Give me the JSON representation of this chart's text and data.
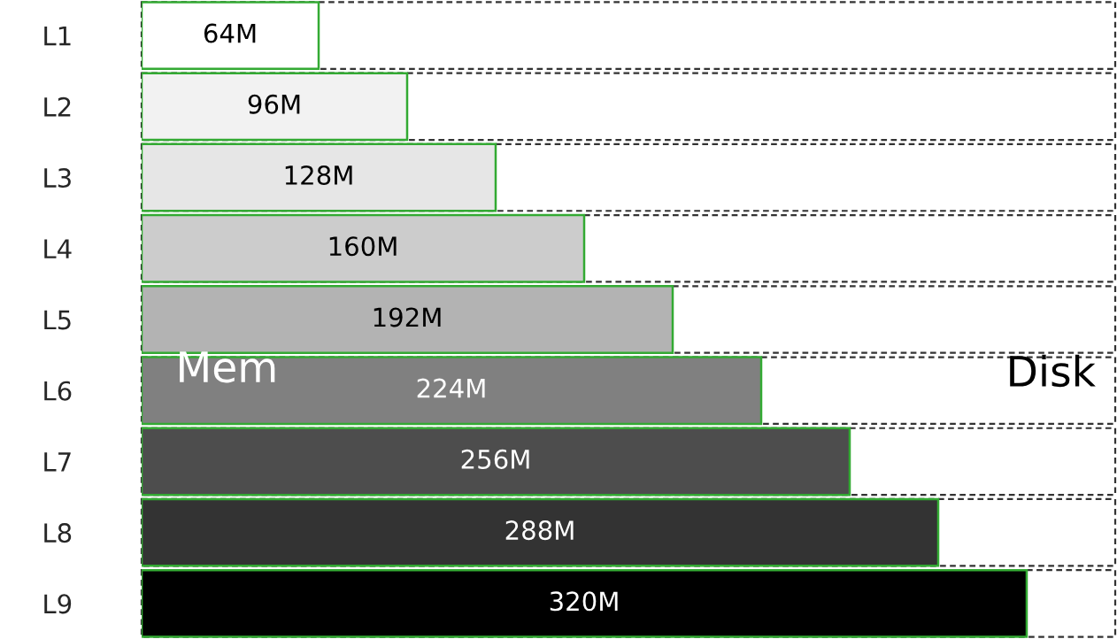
{
  "chart_data": {
    "type": "bar",
    "orientation": "horizontal",
    "categories": [
      "L1",
      "L2",
      "L3",
      "L4",
      "L5",
      "L6",
      "L7",
      "L8",
      "L9"
    ],
    "values": [
      64,
      96,
      128,
      160,
      192,
      224,
      256,
      288,
      320
    ],
    "value_labels": [
      "64M",
      "96M",
      "128M",
      "160M",
      "192M",
      "224M",
      "256M",
      "288M",
      "320M"
    ],
    "colors": [
      "#ffffff",
      "#f2f2f2",
      "#e6e6e6",
      "#cccccc",
      "#b3b3b3",
      "#808080",
      "#4d4d4d",
      "#333333",
      "#000000"
    ],
    "annotations": [
      "Mem",
      "Disk"
    ],
    "tick_labels": "y",
    "grid": false,
    "legend": false
  }
}
